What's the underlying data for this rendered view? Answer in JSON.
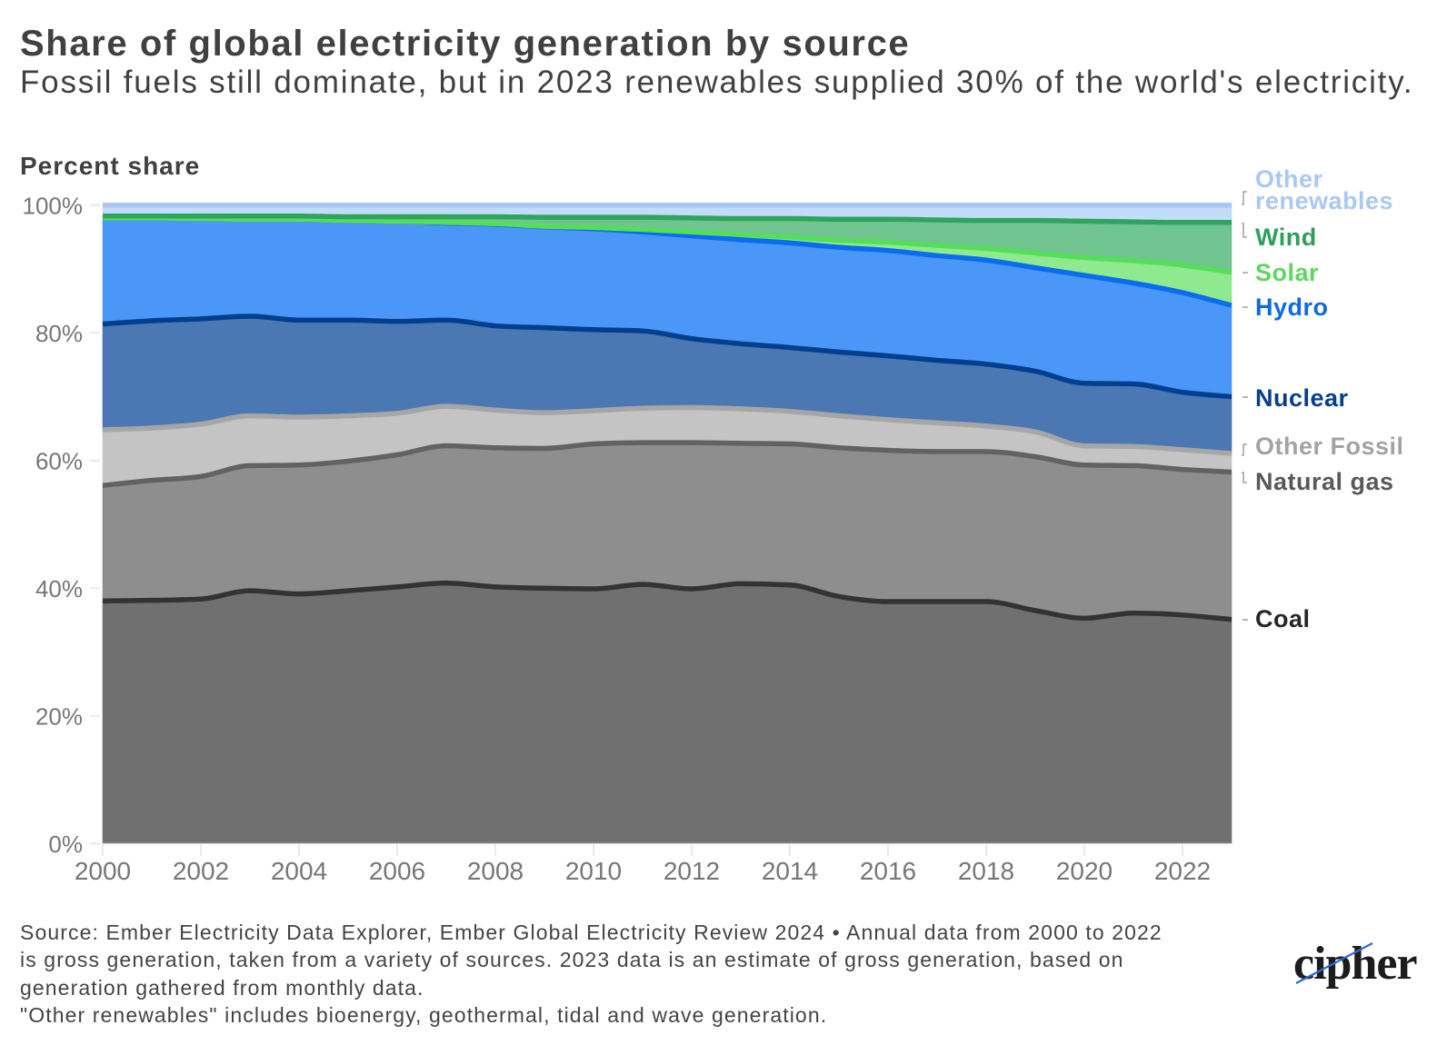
{
  "chart_data": {
    "type": "area",
    "stacked": true,
    "title": "Share of global electricity generation by source",
    "subtitle": "Fossil fuels still dominate, but in 2023 renewables supplied 30% of the world's electricity.",
    "xlabel": "",
    "ylabel": "Percent share",
    "xlim": [
      2000,
      2023
    ],
    "ylim": [
      0,
      100
    ],
    "grid": false,
    "legend_position": "right (direct labels at series ends)",
    "x": [
      2000,
      2001,
      2002,
      2003,
      2004,
      2005,
      2006,
      2007,
      2008,
      2009,
      2010,
      2011,
      2012,
      2013,
      2014,
      2015,
      2016,
      2017,
      2018,
      2019,
      2020,
      2021,
      2022,
      2023
    ],
    "x_ticks": [
      2000,
      2002,
      2004,
      2006,
      2008,
      2010,
      2012,
      2014,
      2016,
      2018,
      2020,
      2022
    ],
    "x_tick_labels": [
      "2000",
      "2002",
      "2004",
      "2006",
      "2008",
      "2010",
      "2012",
      "2014",
      "2016",
      "2018",
      "2020",
      "2022"
    ],
    "y_ticks": [
      0,
      20,
      40,
      60,
      80,
      100
    ],
    "y_tick_labels": [
      "0%",
      "20%",
      "40%",
      "60%",
      "80%",
      "100%"
    ],
    "series": [
      {
        "id": "coal",
        "name": "Coal",
        "label_lines": [
          "Coal"
        ],
        "fill": "#707070",
        "line": "#333333",
        "label_color": "#262626",
        "values": [
          38.0,
          38.1,
          38.3,
          39.6,
          39.1,
          39.6,
          40.2,
          40.8,
          40.2,
          40.0,
          39.9,
          40.6,
          39.9,
          40.7,
          40.5,
          38.7,
          37.9,
          37.9,
          37.9,
          36.5,
          35.3,
          36.1,
          35.8,
          35.1
        ]
      },
      {
        "id": "natural_gas",
        "name": "Natural gas",
        "label_lines": [
          "Natural gas"
        ],
        "fill": "#8e8e8e",
        "line": "#626262",
        "label_color": "#595959",
        "values": [
          18.1,
          18.8,
          19.2,
          19.6,
          20.2,
          20.3,
          20.7,
          21.5,
          21.8,
          21.9,
          22.7,
          22.2,
          22.9,
          22.0,
          22.1,
          23.3,
          23.7,
          23.5,
          23.5,
          24.1,
          24.0,
          23.1,
          22.8,
          23.1
        ]
      },
      {
        "id": "other_fossil",
        "name": "Other Fossil",
        "label_lines": [
          "Other Fossil"
        ],
        "fill": "#c4c4c4",
        "line": "#a6a6a6",
        "label_color": "#a3a3a3",
        "values": [
          8.7,
          8.2,
          8.2,
          7.8,
          7.5,
          7.1,
          6.5,
          6.2,
          5.9,
          5.6,
          5.2,
          5.4,
          5.5,
          5.4,
          5.1,
          5.0,
          4.8,
          4.5,
          4.0,
          3.9,
          3.0,
          3.0,
          3.1,
          2.9
        ]
      },
      {
        "id": "nuclear",
        "name": "Nuclear",
        "label_lines": [
          "Nuclear"
        ],
        "fill": "#4b77b3",
        "line": "#003e8e",
        "label_color": "#063f8c",
        "values": [
          16.6,
          16.8,
          16.5,
          15.6,
          15.2,
          15.0,
          14.4,
          13.5,
          13.2,
          13.3,
          12.7,
          12.1,
          10.8,
          10.2,
          10.0,
          10.0,
          10.0,
          9.8,
          9.7,
          9.5,
          9.8,
          9.8,
          9.0,
          8.9
        ]
      },
      {
        "id": "hydro",
        "name": "Hydro",
        "label_lines": [
          "Hydro"
        ],
        "fill": "#4b97f8",
        "line": "#0a6cf0",
        "label_color": "#0d6ae6",
        "values": [
          16.6,
          16.1,
          15.7,
          15.2,
          15.8,
          15.6,
          15.7,
          15.2,
          15.9,
          15.8,
          15.8,
          15.5,
          16.1,
          16.3,
          16.4,
          16.4,
          16.5,
          16.4,
          16.3,
          16.2,
          16.9,
          15.8,
          15.6,
          14.3
        ]
      },
      {
        "id": "solar",
        "name": "Solar",
        "label_lines": [
          "Solar"
        ],
        "fill": "#8fe98f",
        "line": "#56dd5a",
        "label_color": "#5fd660",
        "values": [
          0.0,
          0.0,
          0.0,
          0.0,
          0.0,
          0.0,
          0.0,
          0.1,
          0.1,
          0.1,
          0.2,
          0.4,
          0.6,
          0.8,
          0.9,
          1.1,
          1.3,
          1.6,
          1.8,
          2.3,
          2.8,
          3.5,
          4.3,
          5.2
        ]
      },
      {
        "id": "wind",
        "name": "Wind",
        "label_lines": [
          "Wind"
        ],
        "fill": "#6fc48f",
        "line": "#2fa45c",
        "label_color": "#2e9e5a",
        "values": [
          0.3,
          0.3,
          0.4,
          0.5,
          0.5,
          0.6,
          0.7,
          0.9,
          1.1,
          1.4,
          1.6,
          1.9,
          2.2,
          2.5,
          2.9,
          3.3,
          3.6,
          4.0,
          4.4,
          5.1,
          5.7,
          6.1,
          6.7,
          7.8
        ]
      },
      {
        "id": "other_renewables",
        "name": "Other renewables",
        "label_lines": [
          "Other",
          "renewables"
        ],
        "fill": "#c2dcf9",
        "line": "#a8c8f3",
        "label_color": "#a9c8f4",
        "values": [
          1.7,
          1.7,
          1.7,
          1.7,
          1.7,
          1.8,
          1.8,
          1.8,
          1.8,
          1.9,
          1.9,
          1.9,
          2.0,
          2.1,
          2.1,
          2.2,
          2.2,
          2.3,
          2.4,
          2.4,
          2.5,
          2.6,
          2.7,
          2.7
        ]
      }
    ]
  },
  "footer": {
    "source_lines": [
      "Source: Ember Electricity Data Explorer, Ember Global Electricity Review 2024 • Annual data from 2000 to 2022",
      "is gross generation, taken from a variety of sources. 2023 data is an estimate of gross generation, based on",
      "generation gathered from monthly data."
    ],
    "note": "\"Other renewables\" includes bioenergy, geothermal, tidal and wave generation."
  },
  "logo": {
    "text": "cipher",
    "slash_color": "#2b6bd6"
  }
}
